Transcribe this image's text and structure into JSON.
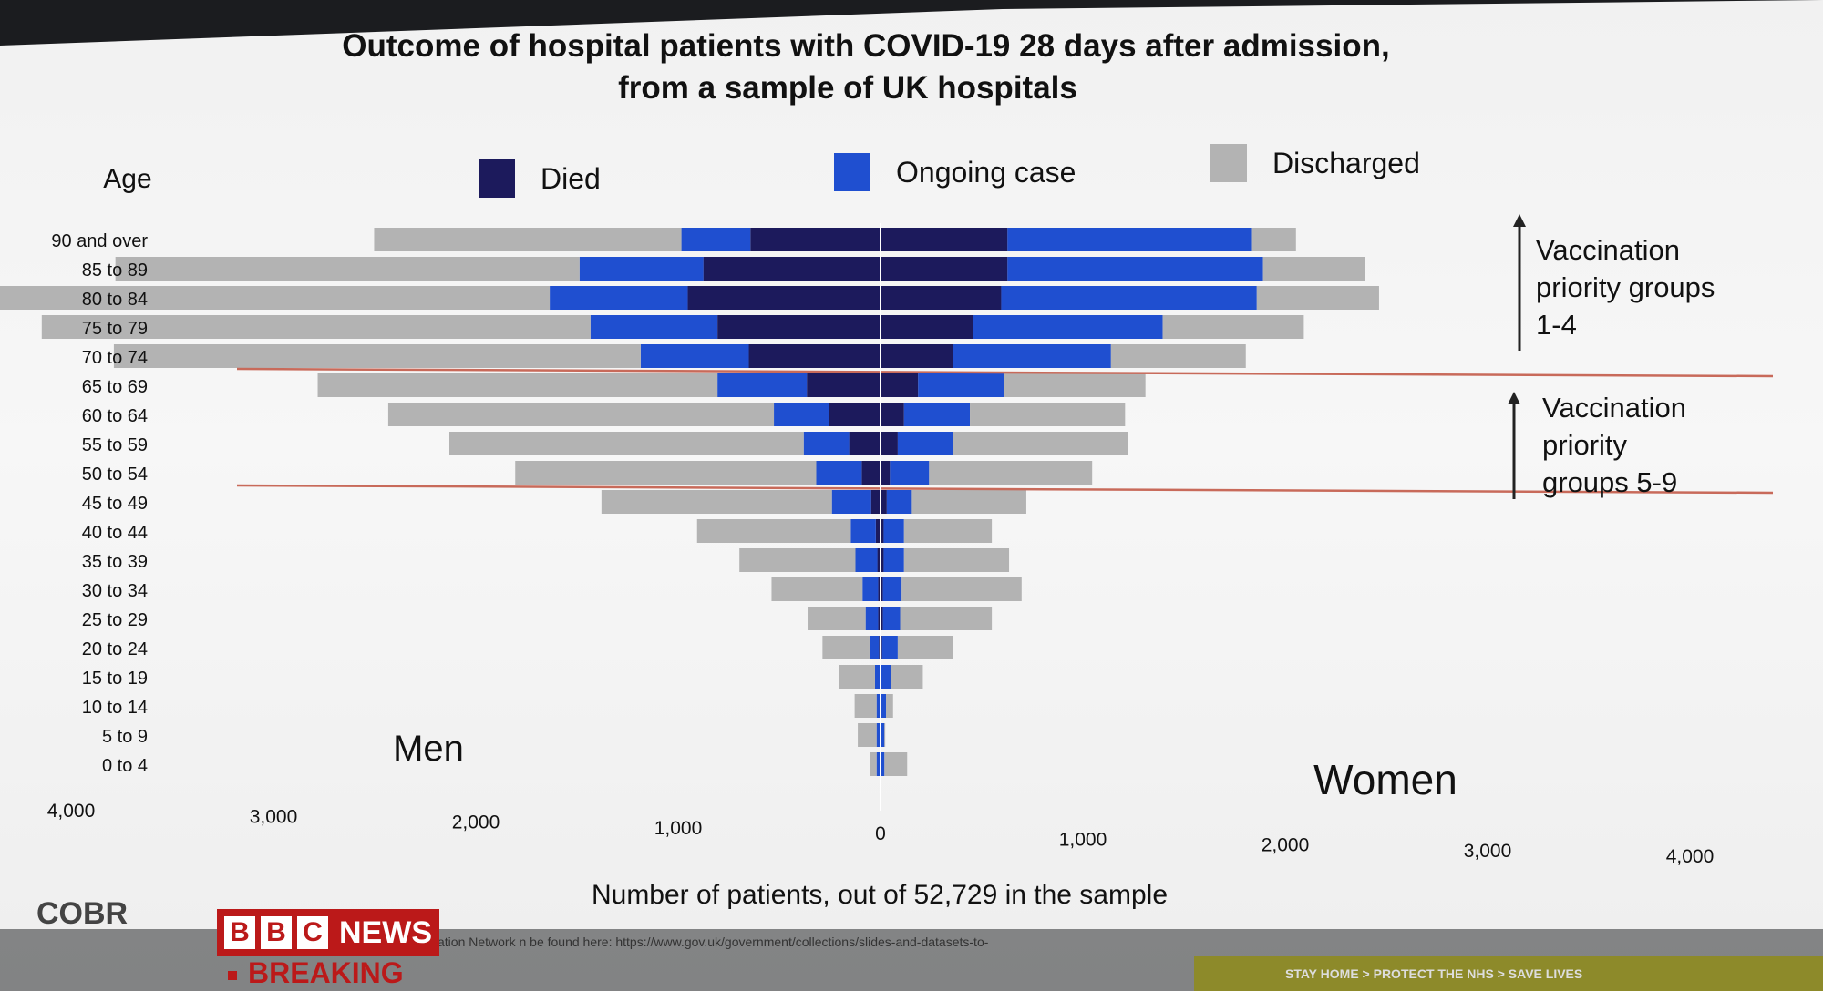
{
  "chart_data": {
    "type": "bar",
    "orientation": "horizontal",
    "layout": "population-pyramid",
    "title": "Outcome of hospital patients with COVID-19 28 days after admission,",
    "subtitle": "from a sample of UK hospitals",
    "xlabel": "Number of patients, out of 52,729 in the sample",
    "ylabel": "Age",
    "xlim": [
      -4000,
      4000
    ],
    "x_ticks": [
      "4,000",
      "3,000",
      "2,000",
      "1,000",
      "0",
      "1,000",
      "2,000",
      "3,000",
      "4,000"
    ],
    "categories": [
      "90 and over",
      "85 to 89",
      "80 to 84",
      "75 to 79",
      "70 to 74",
      "65 to 69",
      "60 to 64",
      "55 to 59",
      "50 to 54",
      "45 to 49",
      "40 to 44",
      "35 to 39",
      "30 to 34",
      "25 to 29",
      "20 to 24",
      "15 to 19",
      "10 to 14",
      "5 to 9",
      "0 to 4"
    ],
    "legend": [
      "Died",
      "Ongoing case",
      "Discharged"
    ],
    "legend_position": "top",
    "colors": {
      "Died": "#1c1a5c",
      "Ongoing case": "#1f4fd0",
      "Discharged": "#b3b3b3",
      "divider": "#c86a5a"
    },
    "side_labels": {
      "left": "Men",
      "right": "Women"
    },
    "men": {
      "Died": [
        830,
        1130,
        1230,
        1040,
        840,
        470,
        330,
        200,
        120,
        60,
        30,
        20,
        15,
        15,
        10,
        5,
        5,
        5,
        5
      ],
      "Ongoing case": [
        440,
        790,
        880,
        810,
        690,
        570,
        350,
        290,
        290,
        250,
        160,
        140,
        100,
        80,
        60,
        30,
        20,
        20,
        20
      ],
      "Discharged": [
        1960,
        2960,
        3550,
        3500,
        3360,
        2550,
        2460,
        2260,
        1920,
        1470,
        980,
        740,
        580,
        370,
        300,
        230,
        140,
        120,
        40
      ]
    },
    "women": {
      "Died": [
        810,
        810,
        770,
        590,
        460,
        240,
        150,
        110,
        60,
        40,
        20,
        20,
        15,
        15,
        10,
        5,
        5,
        5,
        5
      ],
      "Ongoing case": [
        1560,
        1630,
        1630,
        1210,
        1010,
        550,
        420,
        350,
        250,
        160,
        130,
        130,
        120,
        110,
        100,
        60,
        30,
        20,
        20
      ]
    },
    "women_discharged_total": [
      2650,
      3090,
      3180,
      2700,
      2330,
      1690,
      1560,
      1580,
      1350,
      930,
      710,
      820,
      900,
      710,
      460,
      270,
      80,
      30,
      170
    ],
    "annotations": [
      {
        "text": [
          "Vaccination",
          "priority groups",
          "1-4"
        ],
        "spans": [
          "90 and over",
          "70 to 74"
        ]
      },
      {
        "text": [
          "Vaccination",
          "priority",
          "groups 5-9"
        ],
        "spans": [
          "65 to 69",
          "50 to 54"
        ]
      }
    ]
  },
  "overlay": {
    "cobr": "COBR",
    "bbc_letters": [
      "B",
      "B",
      "C"
    ],
    "news": "NEWS",
    "breaking": "BREAKING",
    "source_note": "ation Network  n be found here: https://www.gov.uk/government/collections/slides-and-datasets-to-",
    "stay_home": "STAY HOME > PROTECT THE NHS > SAVE LIVES"
  }
}
